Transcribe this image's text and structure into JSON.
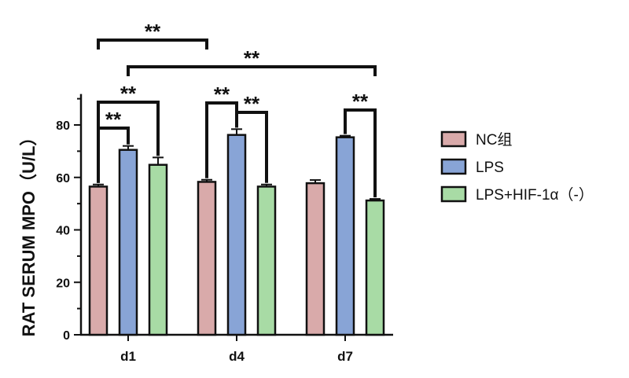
{
  "chart_data": {
    "type": "bar",
    "categories": [
      "d1",
      "d4",
      "d7"
    ],
    "ylabel": "RAT SERUM MPO（U/L）",
    "ylim": [
      0,
      90
    ],
    "yticks": [
      0,
      20,
      40,
      60,
      80
    ],
    "series": [
      {
        "name": "NC组",
        "values": [
          56.5,
          58.3,
          57.8
        ],
        "errors": [
          0.8,
          0.8,
          1.2
        ],
        "color": "#d9aaaa"
      },
      {
        "name": "LPS",
        "values": [
          70.5,
          76.2,
          75.3
        ],
        "errors": [
          1.5,
          2.2,
          0.6
        ],
        "color": "#88a4d6"
      },
      {
        "name": "LPS+HIF-1α（-）",
        "values": [
          64.8,
          56.5,
          51.2
        ],
        "errors": [
          2.8,
          0.8,
          0.6
        ],
        "color": "#a8dba5"
      }
    ],
    "significance": [
      {
        "label": "**",
        "from": {
          "category": 0,
          "series": 0
        },
        "to": {
          "category": 0,
          "series": 1
        }
      },
      {
        "label": "**",
        "from": {
          "category": 0,
          "series": 0
        },
        "to": {
          "category": 0,
          "series": 2
        }
      },
      {
        "label": "**",
        "from": {
          "category": 1,
          "series": 0
        },
        "to": {
          "category": 1,
          "series": 1
        }
      },
      {
        "label": "**",
        "from": {
          "category": 1,
          "series": 1
        },
        "to": {
          "category": 1,
          "series": 2
        }
      },
      {
        "label": "**",
        "from": {
          "category": 2,
          "series": 1
        },
        "to": {
          "category": 2,
          "series": 2
        }
      },
      {
        "label": "**",
        "from": {
          "category": 0,
          "series": 0
        },
        "to": {
          "category": 1,
          "series": 0
        }
      },
      {
        "label": "**",
        "from": {
          "category": 0,
          "series": 1
        },
        "to": {
          "category": 2,
          "series": 2
        }
      }
    ],
    "grid": false,
    "legend_position": "right"
  }
}
